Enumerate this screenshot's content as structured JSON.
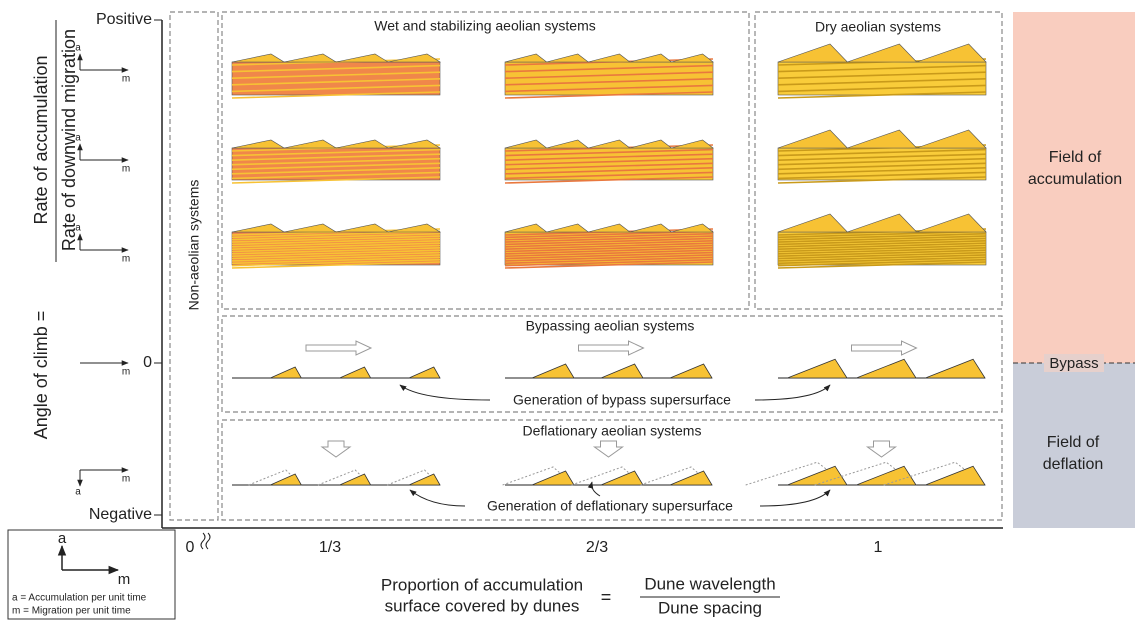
{
  "y_axis": {
    "label": "Angle of climb =",
    "numerator": "Rate of accumulation",
    "denominator": "Rate of downwind migration",
    "ticks": [
      "Positive",
      "0",
      "Negative"
    ]
  },
  "x_axis": {
    "ticks": [
      "0",
      "1/3",
      "2/3",
      "1"
    ],
    "label_line1": "Proportion of accumulation",
    "label_line2": "surface covered by dunes",
    "equals": "=",
    "numerator": "Dune wavelength",
    "denominator": "Dune spacing"
  },
  "side_arrows": [
    {
      "a": "a",
      "m": "m"
    },
    {
      "a": "a",
      "m": "m"
    },
    {
      "a": "a",
      "m": "m"
    },
    {
      "m": "m"
    },
    {
      "a": "a",
      "m": "m"
    }
  ],
  "panels": {
    "non_aeolian": "Non-aeolian systems",
    "wet": "Wet and stabilizing aeolian systems",
    "dry": "Dry aeolian systems",
    "bypass": "Bypassing aeolian systems",
    "bypass_note": "Generation of bypass supersurface",
    "deflation": "Deflationary aeolian systems",
    "deflation_note": "Generation of deflationary supersurface"
  },
  "fields": {
    "accumulation": [
      "Field of",
      "accumulation"
    ],
    "bypass": "Bypass",
    "deflation": [
      "Field of",
      "deflation"
    ]
  },
  "legend": {
    "a": "a",
    "m": "m",
    "a_def": "a = Accumulation per unit time",
    "m_def": "m = Migration per unit time"
  }
}
